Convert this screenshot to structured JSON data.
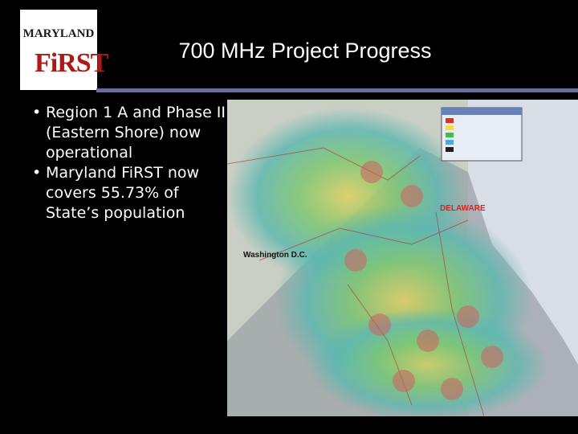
{
  "logo": {
    "name": "MARYLAND",
    "brand": "FiRST"
  },
  "slide": {
    "title": "700 MHz Project Progress",
    "bullets": [
      "Region 1 A and Phase II (Eastern Shore) now operational",
      "Maryland FiRST now covers 55.73% of State’s population"
    ]
  },
  "map": {
    "labels": [
      "DELAWARE",
      "Washington D.C."
    ]
  }
}
